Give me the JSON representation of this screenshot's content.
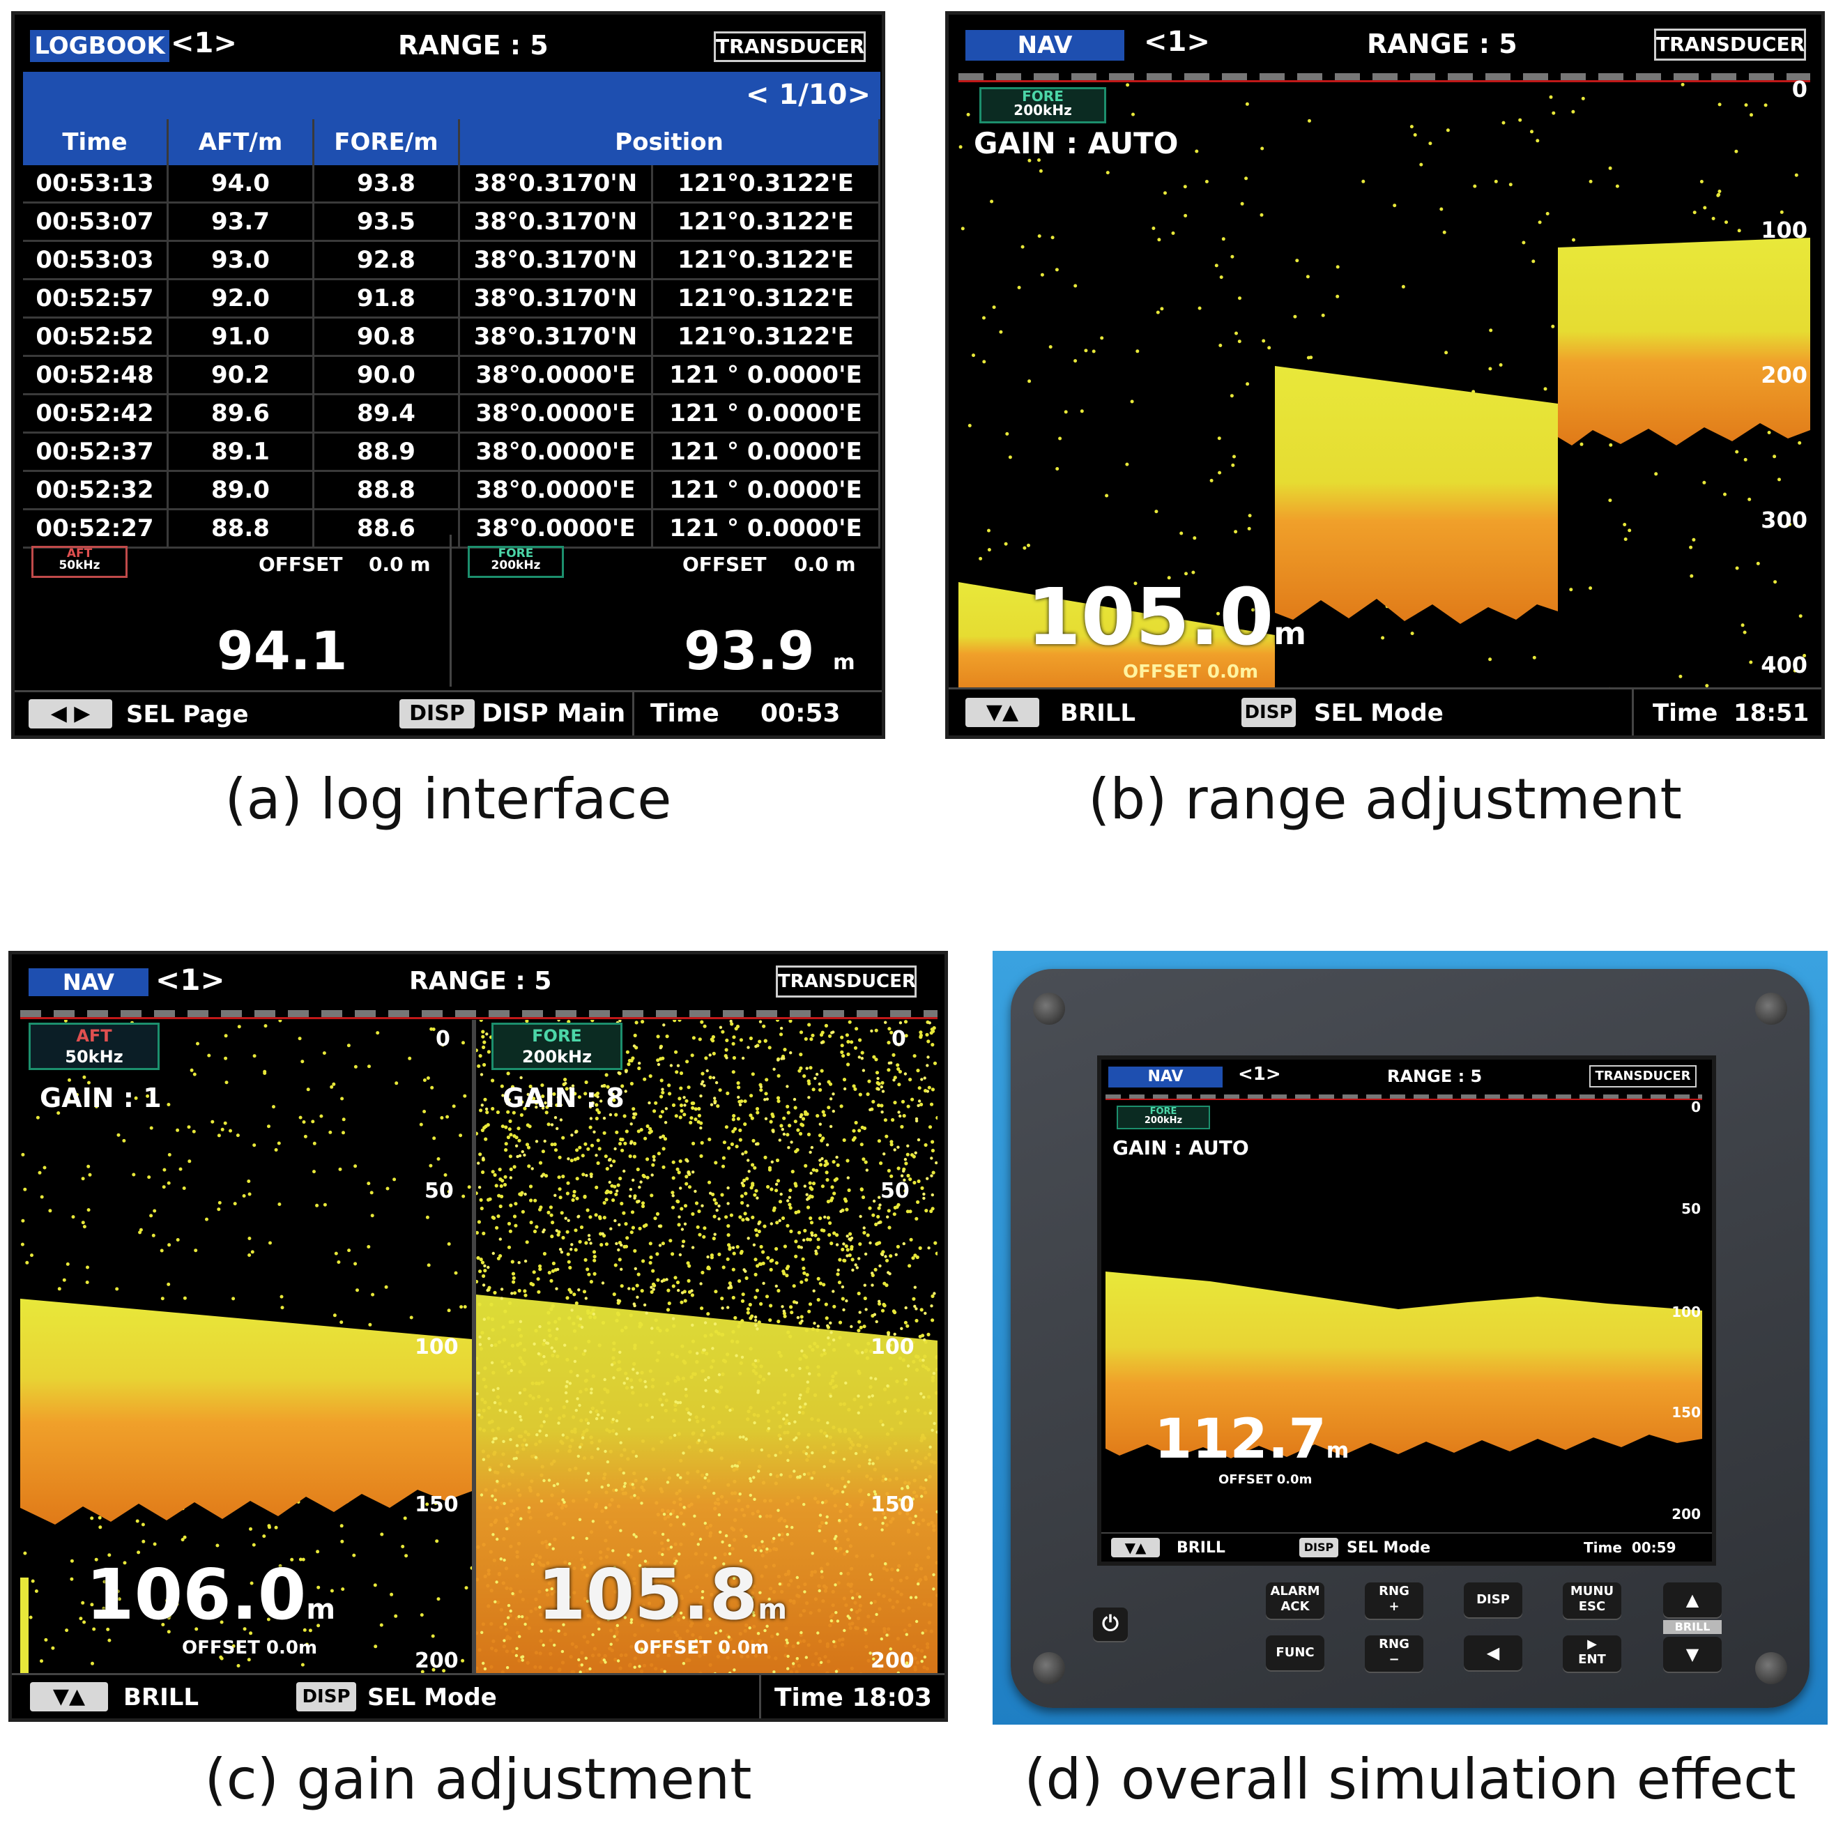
{
  "captions": {
    "a": "(a) log interface",
    "b": "(b) range adjustment",
    "c": "(c) gain adjustment",
    "d": "(d) overall simulation effect"
  },
  "panel_a": {
    "mode": "LOGBOOK",
    "channel": "<1>",
    "range": "RANGE : 5",
    "transducer": "TRANSDUCER",
    "page_indicator": "< 1/10>",
    "columns": [
      "Time",
      "AFT/m",
      "FORE/m",
      "Position"
    ],
    "rows": [
      [
        "00:53:13",
        "94.0",
        "93.8",
        "38°0.3170'N",
        "121°0.3122'E"
      ],
      [
        "00:53:07",
        "93.7",
        "93.5",
        "38°0.3170'N",
        "121°0.3122'E"
      ],
      [
        "00:53:03",
        "93.0",
        "92.8",
        "38°0.3170'N",
        "121°0.3122'E"
      ],
      [
        "00:52:57",
        "92.0",
        "91.8",
        "38°0.3170'N",
        "121°0.3122'E"
      ],
      [
        "00:52:52",
        "91.0",
        "90.8",
        "38°0.3170'N",
        "121°0.3122'E"
      ],
      [
        "00:52:48",
        "90.2",
        "90.0",
        "38°0.0000'E",
        "121 ° 0.0000'E"
      ],
      [
        "00:52:42",
        "89.6",
        "89.4",
        "38°0.0000'E",
        "121 ° 0.0000'E"
      ],
      [
        "00:52:37",
        "89.1",
        "88.9",
        "38°0.0000'E",
        "121 ° 0.0000'E"
      ],
      [
        "00:52:32",
        "89.0",
        "88.8",
        "38°0.0000'E",
        "121 ° 0.0000'E"
      ],
      [
        "00:52:27",
        "88.8",
        "88.6",
        "38°0.0000'E",
        "121 ° 0.0000'E"
      ]
    ],
    "aft_label": "AFT",
    "aft_freq": "50kHz",
    "fore_label": "FORE",
    "fore_freq": "200kHz",
    "offset_label": "OFFSET",
    "aft_offset": "0.0 m",
    "fore_offset": "0.0  m",
    "aft_depth": "94.1",
    "fore_depth": "93.9",
    "fore_unit": "m",
    "footer": {
      "arrows": "◀ ▶",
      "sel": "SEL Page",
      "disp_btn": "DISP",
      "disp": "DISP Main",
      "time_label": "Time",
      "time": "00:53"
    }
  },
  "panel_b": {
    "mode": "NAV",
    "channel": "<1>",
    "range": "RANGE : 5",
    "transducer": "TRANSDUCER",
    "fore_label": "FORE",
    "fore_freq": "200kHz",
    "gain": "GAIN :  AUTO",
    "depth": "105.0",
    "unit": "m",
    "offset": "OFFSET   0.0m",
    "scale": [
      "0",
      "100",
      "200",
      "300",
      "400"
    ],
    "footer": {
      "arrows": "▼▲",
      "brill": "BRILL",
      "disp_btn": "DISP",
      "sel": "SEL  Mode",
      "time_label": "Time",
      "time": "18:51"
    }
  },
  "panel_c": {
    "mode": "NAV",
    "channel": "<1>",
    "range": "RANGE : 5",
    "transducer": "TRANSDUCER",
    "aft_label": "AFT",
    "aft_freq": "50kHz",
    "fore_label": "FORE",
    "fore_freq": "200kHz",
    "gain_left": "GAIN :  1",
    "gain_right": "GAIN :  8",
    "depth_left": "106.0",
    "depth_right": "105.8",
    "unit": "m",
    "offset": "OFFSET   0.0m",
    "scale": [
      "0",
      "50",
      "100",
      "150",
      "200"
    ],
    "footer": {
      "arrows": "▼▲",
      "brill": "BRILL",
      "disp_btn": "DISP",
      "sel": "SEL  Mode",
      "time_label": "Time",
      "time": "18:03"
    }
  },
  "panel_d": {
    "mode": "NAV",
    "channel": "<1>",
    "range": "RANGE : 5",
    "transducer": "TRANSDUCER",
    "fore_label": "FORE",
    "fore_freq": "200kHz",
    "gain": "GAIN :  AUTO",
    "depth": "112.7",
    "unit": "m",
    "offset": "OFFSET   0.0m",
    "scale": [
      "0",
      "50",
      "100",
      "150",
      "200"
    ],
    "footer": {
      "arrows": "▼▲",
      "brill": "BRILL",
      "disp_btn": "DISP",
      "sel": "SEL  Mode",
      "time_label": "Time",
      "time": "00:59"
    },
    "keys": {
      "alarm": "ALARM\nACK",
      "rng_plus": "RNG\n+",
      "disp": "DISP",
      "menu": "MUNU\nESC",
      "func": "FUNC",
      "rng_minus": "RNG\n−",
      "left": "◀",
      "ent": "▶\nENT",
      "up": "▲",
      "brill": "BRILL",
      "down": "▼",
      "power": "⏻"
    }
  },
  "colors": {
    "header_blue": "#1e4fb0",
    "echo_yellow": "#e8e83a",
    "echo_orange": "#f0902a",
    "bezel": "#3a3d42",
    "backdrop": "#2f8fd0"
  }
}
